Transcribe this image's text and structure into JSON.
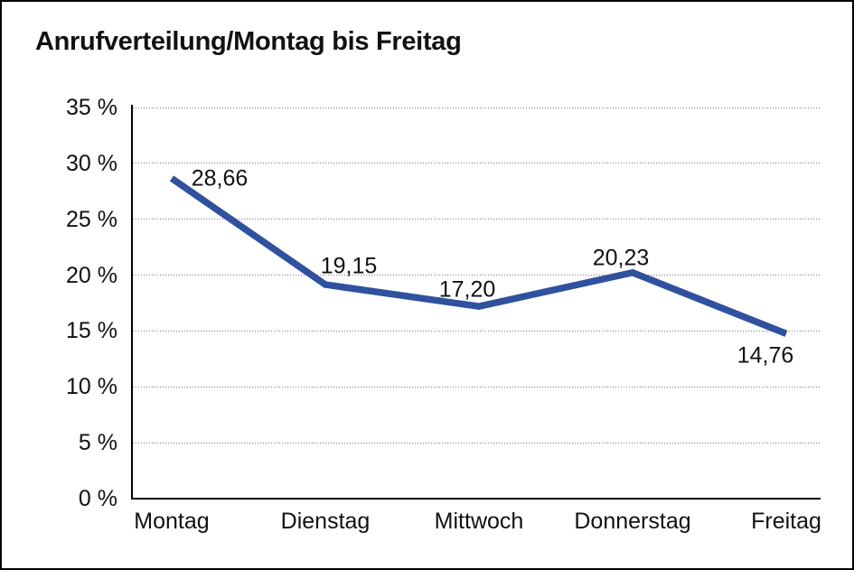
{
  "chart_data": {
    "type": "line",
    "title": "Anrufverteilung/Montag bis Freitag",
    "categories": [
      "Montag",
      "Dienstag",
      "Mittwoch",
      "Donnerstag",
      "Freitag"
    ],
    "values": [
      28.66,
      19.15,
      17.2,
      20.23,
      14.76
    ],
    "value_labels": [
      "28,66",
      "19,15",
      "17,20",
      "20,23",
      "14,76"
    ],
    "series_name": "Anrufverteilung",
    "xlabel": "",
    "ylabel": "",
    "ylim": [
      0,
      35
    ],
    "y_tick_step": 5,
    "y_ticks": [
      {
        "value": 0,
        "label": "0 %"
      },
      {
        "value": 5,
        "label": "5 %"
      },
      {
        "value": 10,
        "label": "10 %"
      },
      {
        "value": 15,
        "label": "15 %"
      },
      {
        "value": 20,
        "label": "20 %"
      },
      {
        "value": 25,
        "label": "25 %"
      },
      {
        "value": 30,
        "label": "30 %"
      },
      {
        "value": 35,
        "label": "35 %"
      }
    ],
    "grid": "horizontal-dotted",
    "legend": "none",
    "line_color": "#2F519E",
    "text_color": "#111111",
    "background_color": "#ffffff",
    "frame_color": "#000000"
  }
}
